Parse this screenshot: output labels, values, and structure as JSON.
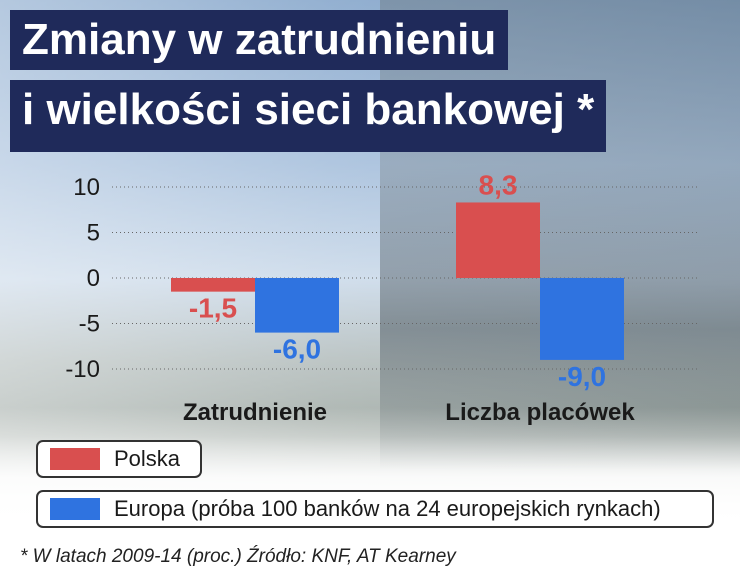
{
  "title_line1": "Zmiany w zatrudnieniu",
  "title_line2": "i wielkości sieci bankowej *",
  "chart_data": {
    "type": "bar",
    "categories": [
      "Zatrudnienie",
      "Liczba placówek"
    ],
    "series": [
      {
        "name": "Polska",
        "values": [
          -1.5,
          8.3
        ],
        "labels": [
          "-1,5",
          "8,3"
        ],
        "color": "#d94f4f",
        "label_color": "#d94f4f"
      },
      {
        "name": "Europa (próba 100 banków na 24 europejskich rynkach)",
        "values": [
          -6.0,
          -9.0
        ],
        "labels": [
          "-6,0",
          "-9,0"
        ],
        "color": "#2f73e0",
        "label_color": "#2f73e0"
      }
    ],
    "yticks": [
      10,
      5,
      0,
      -5,
      -10
    ],
    "ytick_labels": [
      "10",
      "5",
      "0",
      "-5",
      "-10"
    ],
    "ylim": [
      -10,
      10
    ],
    "grid": true,
    "legend_position": "bottom"
  },
  "legend": {
    "polska": "Polska",
    "europa": "Europa (próba 100 banków na 24 europejskich rynkach)"
  },
  "footnote": "* W latach 2009-14 (proc.) Źródło: KNF, AT Kearney"
}
